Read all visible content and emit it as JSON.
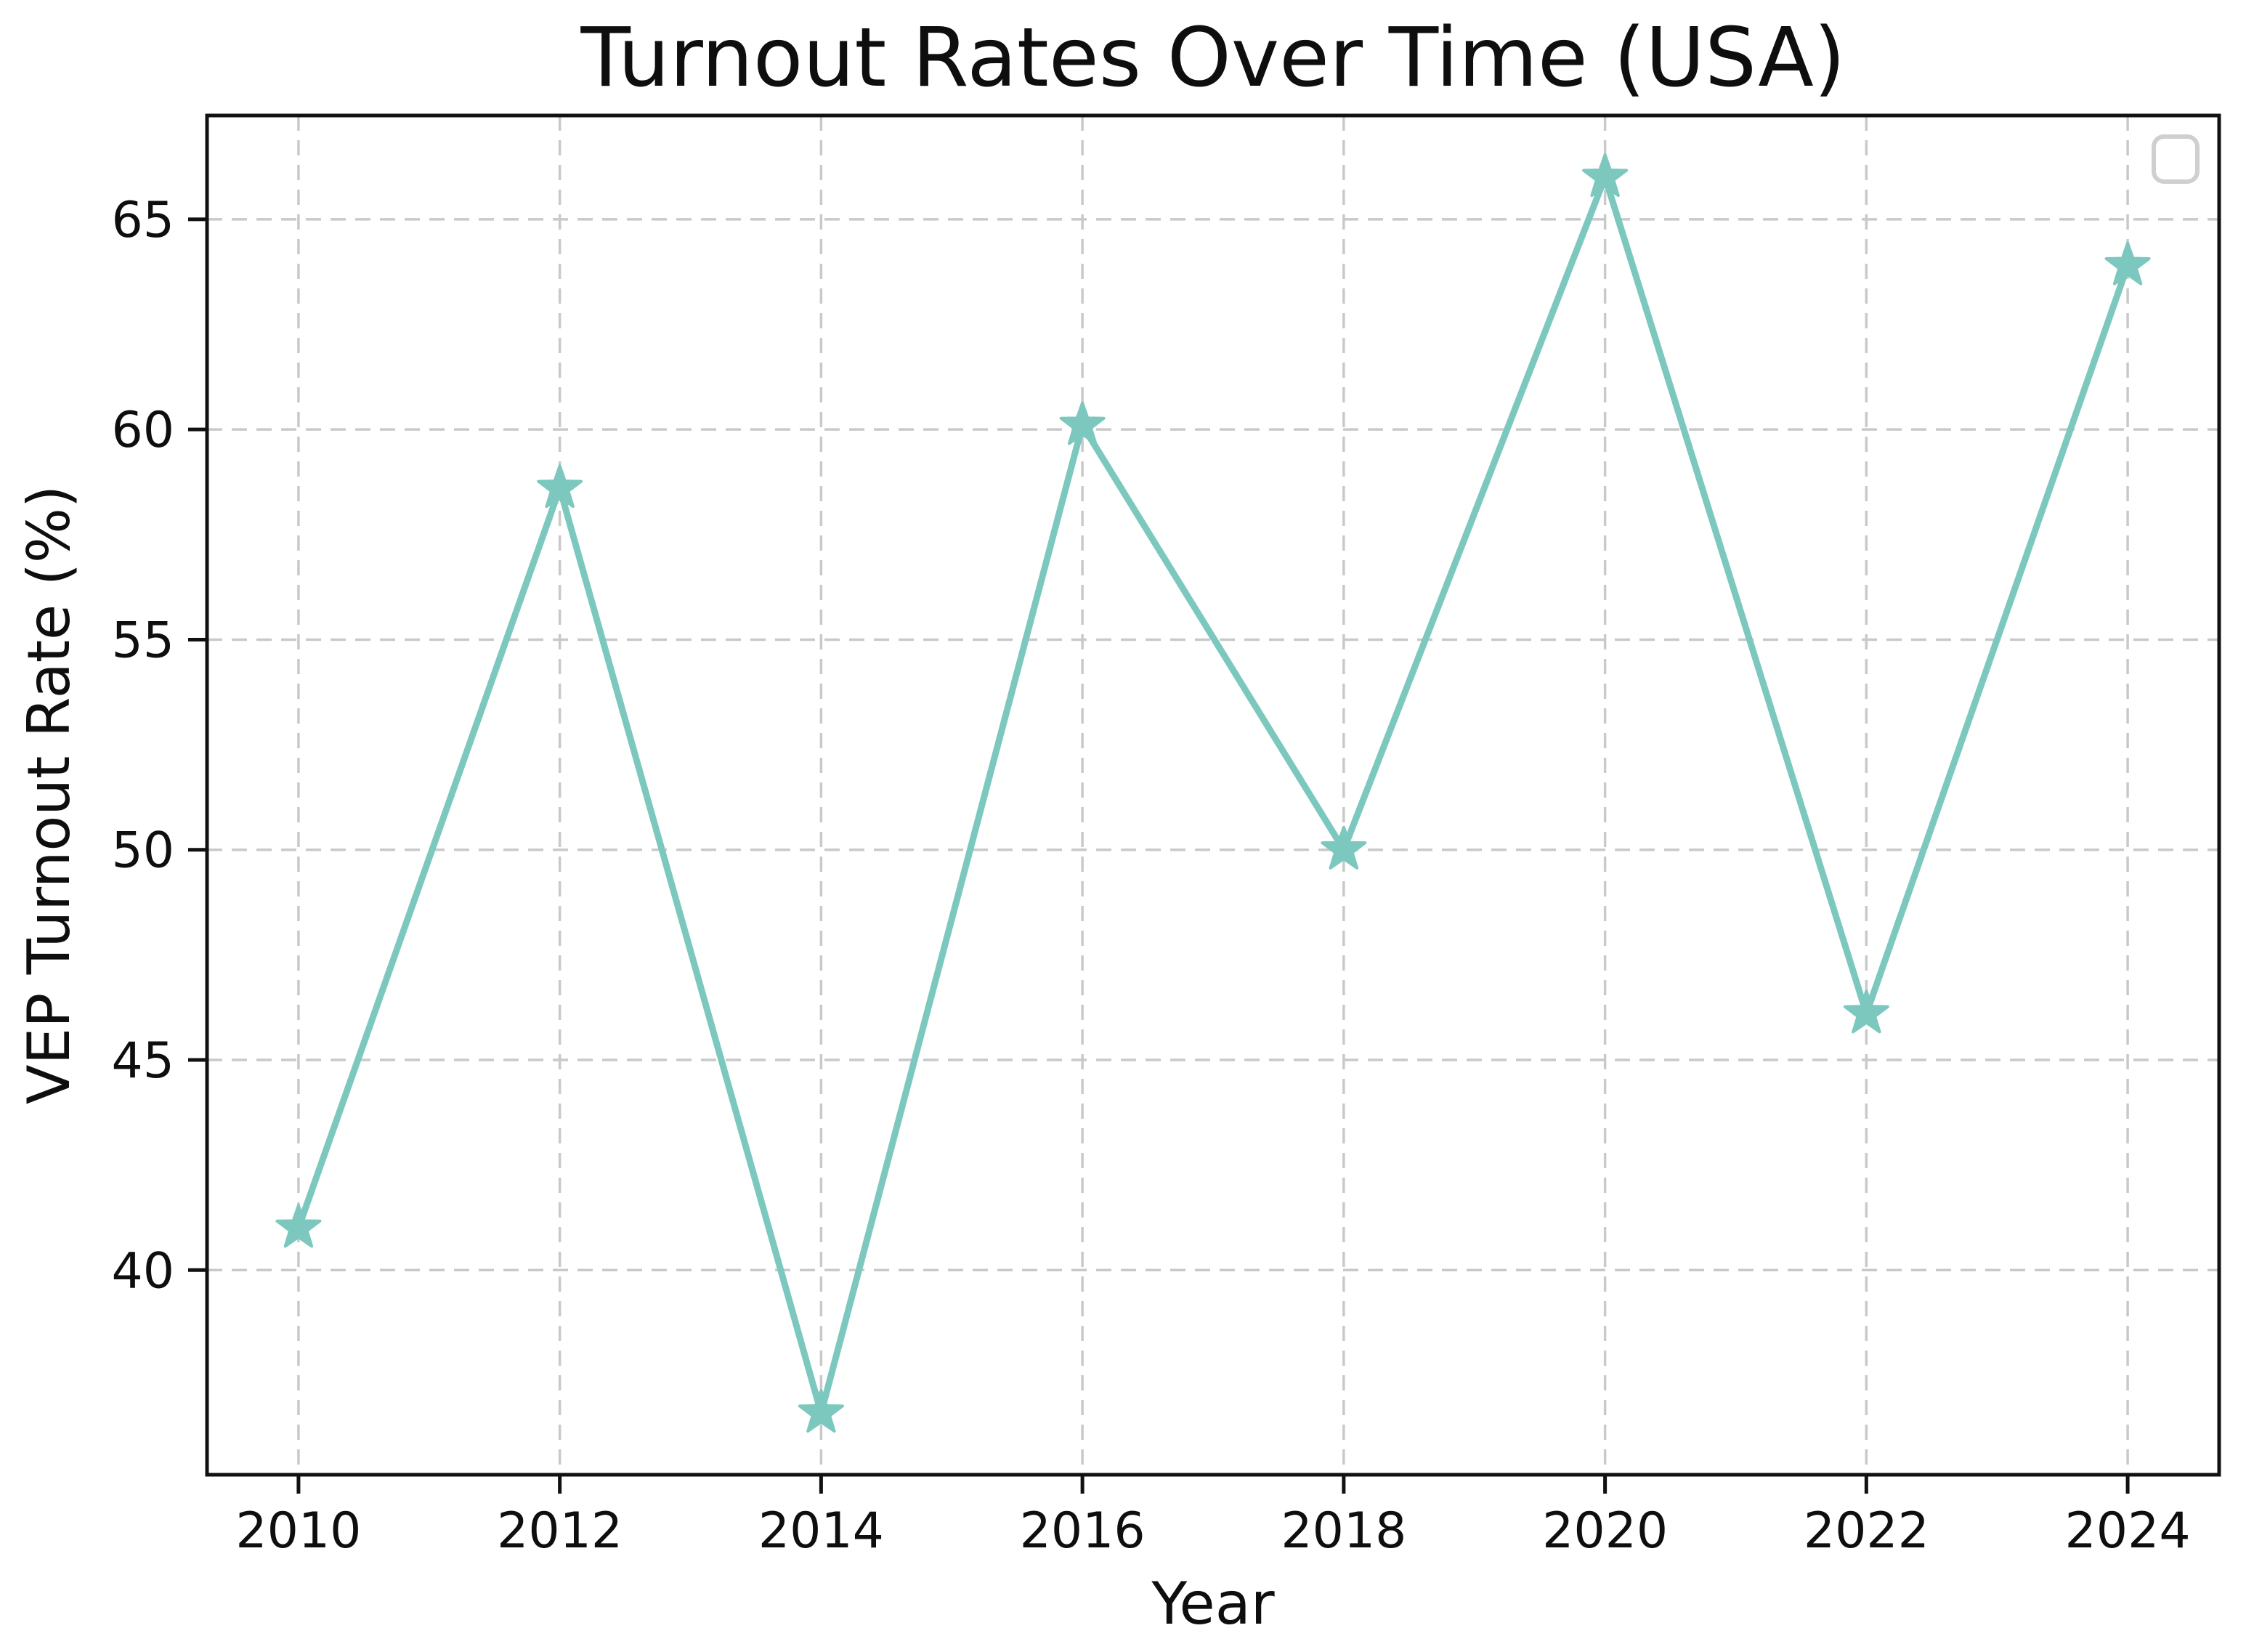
{
  "figure": {
    "background_color": "#ffffff",
    "text_color": "#0e0e0e",
    "spine_color": "#111111",
    "grid_color": "#c9c9c9",
    "legend_border_color": "#cfcfcf"
  },
  "chart_data": {
    "type": "line",
    "title": "Turnout Rates Over Time (USA)",
    "xlabel": "Year",
    "ylabel": "VEP Turnout Rate (%)",
    "x": [
      2010,
      2012,
      2014,
      2016,
      2018,
      2020,
      2022,
      2024
    ],
    "series": [
      {
        "name": "VEP Turnout Rate",
        "values": [
          41.0,
          58.6,
          36.6,
          60.1,
          50.0,
          66.0,
          46.1,
          63.9
        ],
        "color": "#7dc8be",
        "marker": "star"
      }
    ],
    "xtick_labels": [
      "2010",
      "2012",
      "2014",
      "2016",
      "2018",
      "2020",
      "2022",
      "2024"
    ],
    "yticks": [
      40,
      45,
      50,
      55,
      60,
      65
    ],
    "ytick_labels": [
      "40",
      "45",
      "50",
      "55",
      "60",
      "65"
    ],
    "xlim": [
      2009.3,
      2024.7
    ],
    "ylim": [
      35.13,
      67.47
    ],
    "grid": true,
    "grid_dash": "dashed",
    "legend": {
      "visible": true,
      "entries": [],
      "position": "upper right"
    }
  }
}
